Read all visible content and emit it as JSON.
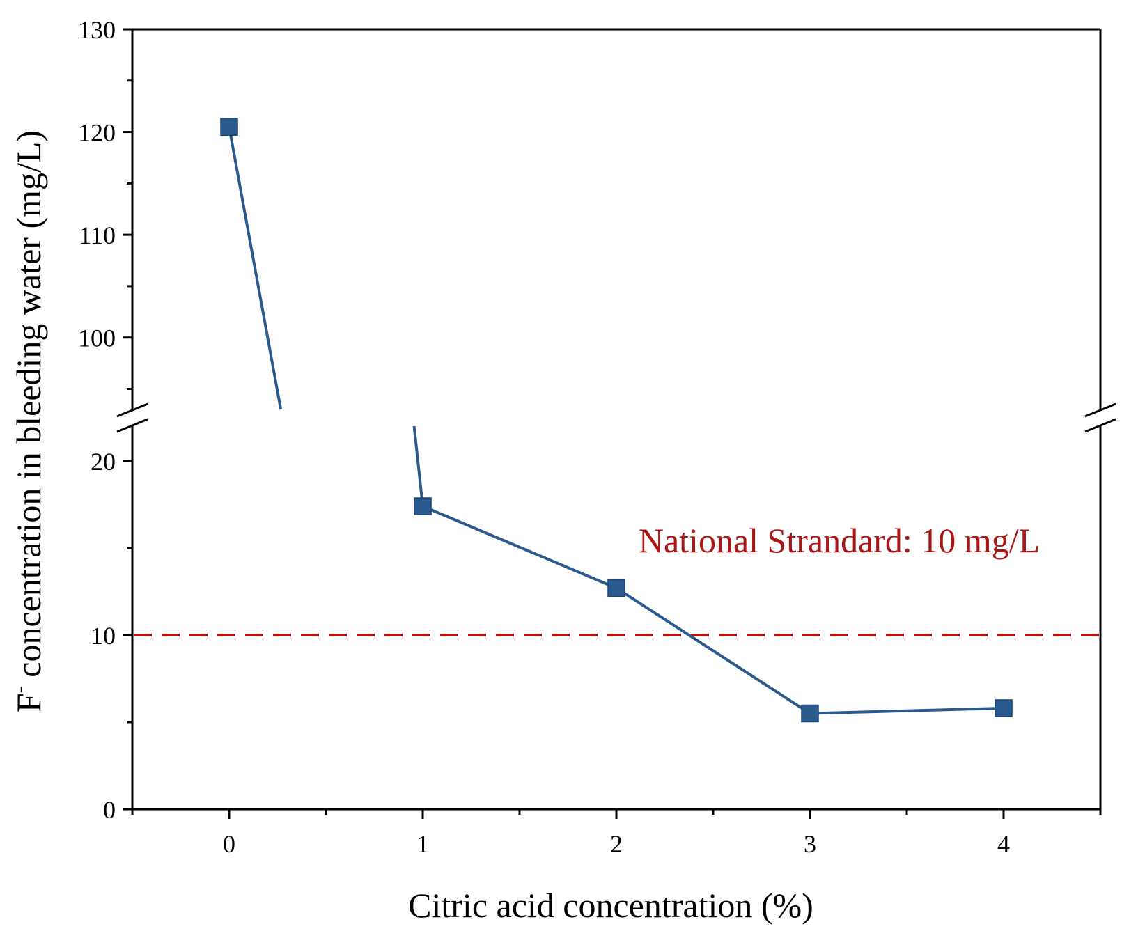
{
  "chart_data": {
    "type": "line",
    "title": "",
    "xlabel": "Citric acid concentration (%)",
    "ylabel": {
      "prefix": "F",
      "superscript": "-",
      "suffix": " concentration in bleeding water (mg/L)"
    },
    "x_ticks": [
      "0",
      "1",
      "2",
      "3",
      "4"
    ],
    "xlim": [
      -0.5,
      4.5
    ],
    "ylim": [
      0,
      130
    ],
    "y_break": [
      22,
      93
    ],
    "y_ticks_lower": [
      "0",
      "10",
      "20"
    ],
    "y_ticks_upper": [
      "100",
      "110",
      "120",
      "130"
    ],
    "series": [
      {
        "name": "F- concentration",
        "color": "#2b5a8f",
        "marker": "square",
        "x": [
          0,
          1,
          2,
          3,
          4
        ],
        "y": [
          120.5,
          17.4,
          12.7,
          5.5,
          5.8
        ]
      }
    ],
    "reference_line": {
      "value": 10,
      "style": "dashed",
      "color": "#a81616",
      "label": "National Strandard: 10 mg/L"
    }
  }
}
